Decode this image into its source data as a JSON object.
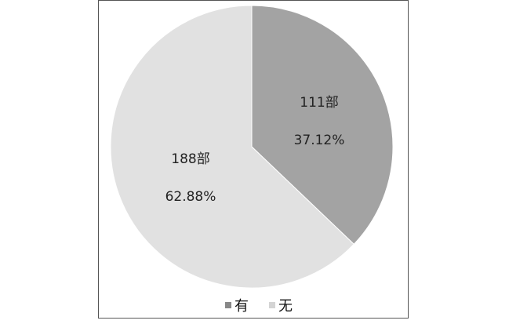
{
  "chart_data": {
    "type": "pie",
    "slices": [
      {
        "name": "有",
        "value": 111,
        "count_label": "111部",
        "percent_label": "37.12%",
        "color": "#a3a3a3"
      },
      {
        "name": "无",
        "value": 188,
        "count_label": "188部",
        "percent_label": "62.88%",
        "color": "#e1e1e1"
      }
    ],
    "legend_position": "bottom",
    "start_angle": "12 o'clock, clockwise"
  }
}
